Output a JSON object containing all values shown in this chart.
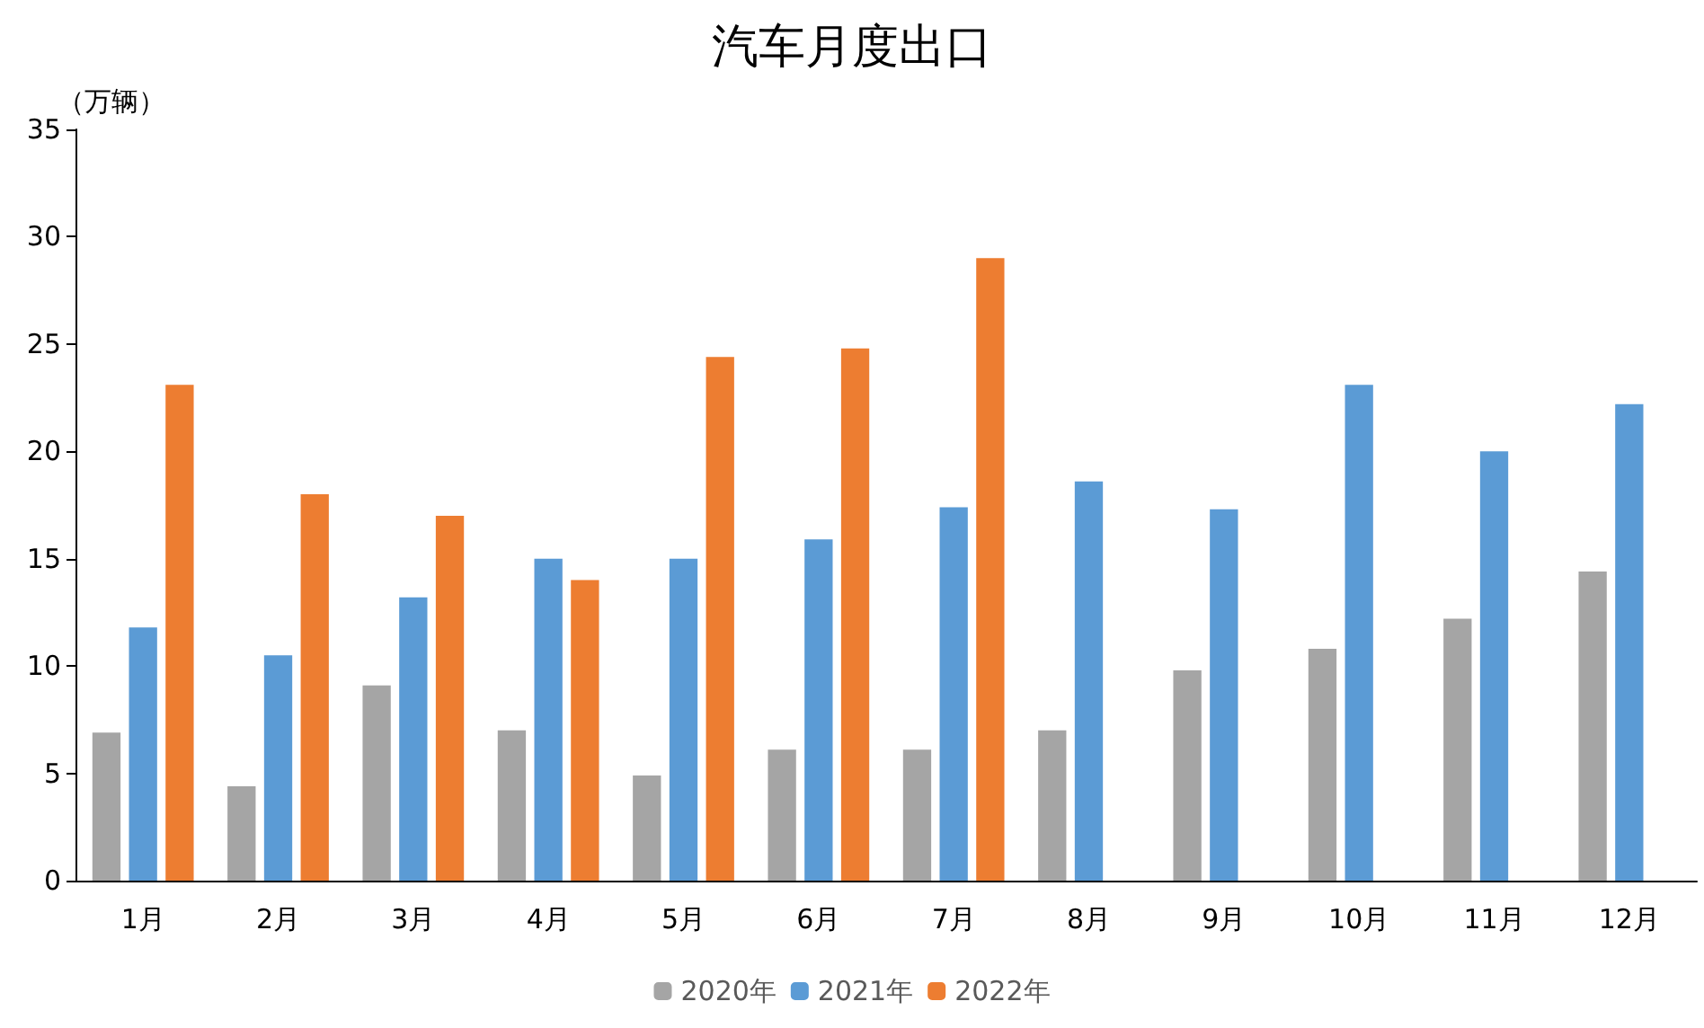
{
  "chart_data": {
    "type": "bar",
    "title": "汽车月度出口",
    "ylabel": "（万辆）",
    "categories": [
      "1月",
      "2月",
      "3月",
      "4月",
      "5月",
      "6月",
      "7月",
      "8月",
      "9月",
      "10月",
      "11月",
      "12月"
    ],
    "series": [
      {
        "name": "2020年",
        "color": "#a5a5a5",
        "values": [
          6.9,
          4.4,
          9.1,
          7.0,
          4.9,
          6.1,
          6.1,
          7.0,
          9.8,
          10.8,
          12.2,
          14.4
        ]
      },
      {
        "name": "2021年",
        "color": "#5b9bd5",
        "values": [
          11.8,
          10.5,
          13.2,
          15.0,
          15.0,
          15.9,
          17.4,
          18.6,
          17.3,
          23.1,
          20.0,
          22.2
        ]
      },
      {
        "name": "2022年",
        "color": "#ed7d31",
        "values": [
          23.1,
          18.0,
          17.0,
          14.0,
          24.4,
          24.8,
          29.0,
          null,
          null,
          null,
          null,
          null
        ]
      }
    ],
    "ylim": [
      0,
      35
    ],
    "yticks": [
      0,
      5,
      10,
      15,
      20,
      25,
      30,
      35
    ],
    "grid": false,
    "legend": "bottom"
  }
}
